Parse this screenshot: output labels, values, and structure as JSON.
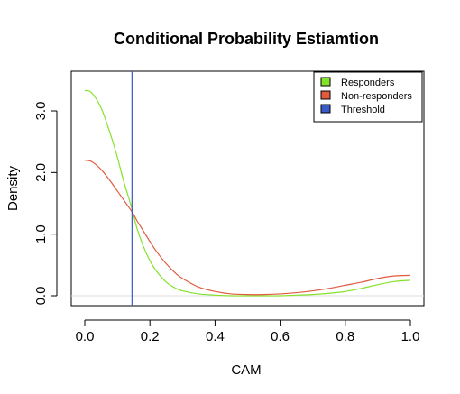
{
  "chart_data": {
    "type": "line",
    "title": "Conditional Probability Estiamtion",
    "xlabel": "CAM",
    "ylabel": "Density",
    "xlim": [
      0.0,
      1.0
    ],
    "ylim": [
      0.0,
      3.3
    ],
    "x_ticks": [
      "0.0",
      "0.2",
      "0.4",
      "0.6",
      "0.8",
      "1.0"
    ],
    "y_ticks": [
      "0.0",
      "1.0",
      "2.0",
      "3.0"
    ],
    "zero_line": true,
    "legend_position": "top-right",
    "series": [
      {
        "name": "Responders",
        "color": "#84e22b",
        "x": [
          0.0,
          0.02,
          0.05,
          0.08,
          0.1,
          0.12,
          0.14,
          0.15,
          0.16,
          0.18,
          0.2,
          0.22,
          0.25,
          0.28,
          0.3,
          0.35,
          0.4,
          0.45,
          0.5,
          0.55,
          0.6,
          0.65,
          0.7,
          0.75,
          0.8,
          0.85,
          0.9,
          0.95,
          1.0
        ],
        "y": [
          3.33,
          3.3,
          3.05,
          2.6,
          2.25,
          1.85,
          1.5,
          1.3,
          1.1,
          0.8,
          0.57,
          0.4,
          0.22,
          0.12,
          0.08,
          0.03,
          0.01,
          0.0,
          0.0,
          0.0,
          0.0,
          0.01,
          0.02,
          0.04,
          0.07,
          0.12,
          0.18,
          0.23,
          0.25
        ]
      },
      {
        "name": "Non-responders",
        "color": "#e05a3f",
        "x": [
          0.0,
          0.02,
          0.05,
          0.08,
          0.1,
          0.12,
          0.14,
          0.15,
          0.16,
          0.18,
          0.2,
          0.22,
          0.25,
          0.28,
          0.3,
          0.35,
          0.4,
          0.45,
          0.5,
          0.55,
          0.6,
          0.65,
          0.7,
          0.75,
          0.8,
          0.85,
          0.9,
          0.95,
          1.0
        ],
        "y": [
          2.2,
          2.18,
          2.05,
          1.85,
          1.7,
          1.55,
          1.4,
          1.32,
          1.22,
          1.05,
          0.88,
          0.72,
          0.52,
          0.36,
          0.28,
          0.14,
          0.07,
          0.03,
          0.02,
          0.02,
          0.03,
          0.05,
          0.08,
          0.12,
          0.17,
          0.22,
          0.28,
          0.32,
          0.33
        ]
      }
    ],
    "threshold": {
      "name": "Threshold",
      "x": 0.145,
      "color": "#3a5bc7"
    }
  }
}
